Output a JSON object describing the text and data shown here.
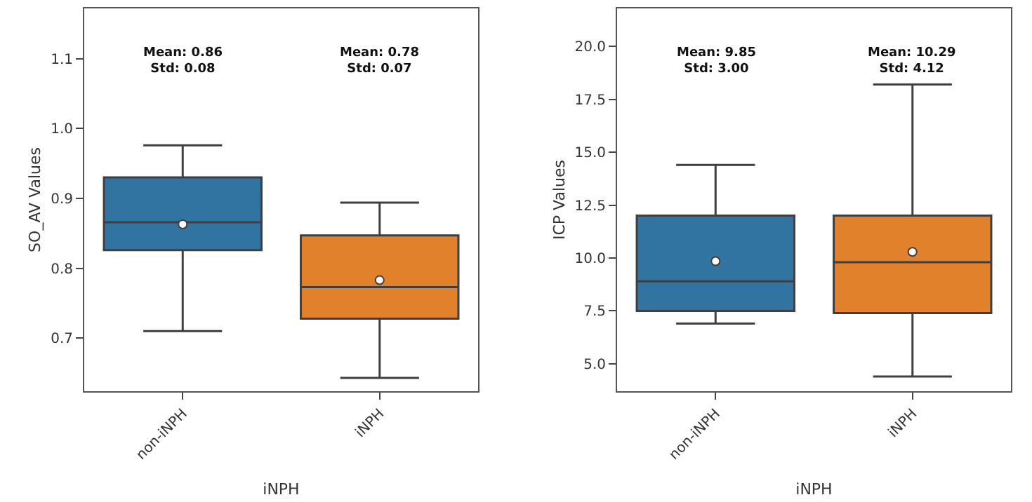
{
  "chart_data": [
    {
      "type": "box",
      "xlabel": "iNPH",
      "ylabel": "SO_AV Values",
      "categories": [
        "non-iNPH",
        "iNPH"
      ],
      "colors": [
        "#3274a1",
        "#e1812c"
      ],
      "boxes": [
        {
          "low": 0.71,
          "q1": 0.826,
          "median": 0.866,
          "q3": 0.93,
          "high": 0.976,
          "mean": 0.863
        },
        {
          "low": 0.643,
          "q1": 0.728,
          "median": 0.773,
          "q3": 0.847,
          "high": 0.894,
          "mean": 0.783
        }
      ],
      "ylim": [
        0.624,
        1.172
      ],
      "yticks": [
        {
          "value": 0.7,
          "label": "0.7"
        },
        {
          "value": 0.8,
          "label": "0.8"
        },
        {
          "value": 0.9,
          "label": "0.9"
        },
        {
          "value": 1.0,
          "label": "1.0"
        },
        {
          "value": 1.1,
          "label": "1.1"
        }
      ],
      "annotations": [
        "Mean: 0.86\nStd: 0.08",
        "Mean: 0.78\nStd: 0.07"
      ],
      "legend": false
    },
    {
      "type": "box",
      "xlabel": "iNPH",
      "ylabel": "ICP Values",
      "categories": [
        "non-iNPH",
        "iNPH"
      ],
      "colors": [
        "#3274a1",
        "#e1812c"
      ],
      "boxes": [
        {
          "low": 6.9,
          "q1": 7.5,
          "median": 8.9,
          "q3": 12.0,
          "high": 14.4,
          "mean": 9.85
        },
        {
          "low": 4.4,
          "q1": 7.4,
          "median": 9.8,
          "q3": 12.0,
          "high": 18.2,
          "mean": 10.29
        }
      ],
      "ylim": [
        3.7,
        21.8
      ],
      "yticks": [
        {
          "value": 5,
          "label": "5.0"
        },
        {
          "value": 7.5,
          "label": "7.5"
        },
        {
          "value": 10,
          "label": "10.0"
        },
        {
          "value": 12.5,
          "label": "12.5"
        },
        {
          "value": 15,
          "label": "15.0"
        },
        {
          "value": 17.5,
          "label": "17.5"
        },
        {
          "value": 20,
          "label": "20.0"
        }
      ],
      "annotations": [
        "Mean: 9.85\nStd: 3.00",
        "Mean: 10.29\nStd: 4.12"
      ],
      "legend": false
    }
  ]
}
